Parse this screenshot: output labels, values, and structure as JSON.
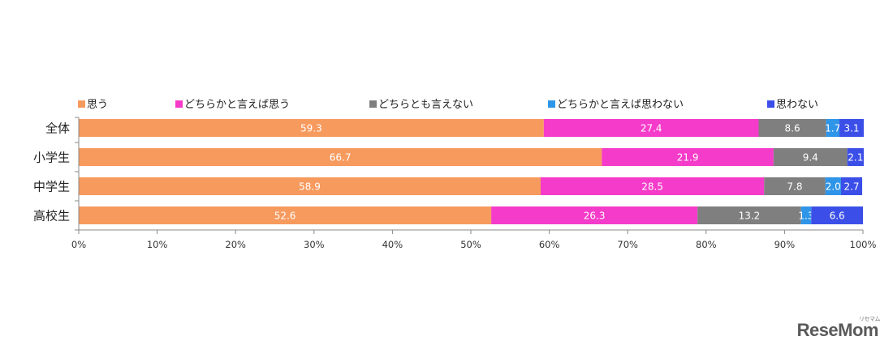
{
  "chart_data": {
    "type": "bar",
    "orientation": "horizontal",
    "stacked": true,
    "categories": [
      "全体",
      "小学生",
      "中学生",
      "高校生"
    ],
    "series": [
      {
        "name": "思う",
        "color": "#F79A5E",
        "values": [
          59.3,
          66.7,
          58.9,
          52.6
        ],
        "labels": [
          "59.3",
          "66.7",
          "58.9",
          "52.6"
        ]
      },
      {
        "name": "どちらかと言えば思う",
        "color": "#F53BC9",
        "values": [
          27.4,
          21.9,
          28.5,
          26.3
        ],
        "labels": [
          "27.4",
          "21.9",
          "28.5",
          "26.3"
        ]
      },
      {
        "name": "どちらとも言えない",
        "color": "#7F7F7F",
        "values": [
          8.6,
          9.4,
          7.8,
          13.2
        ],
        "labels": [
          "8.6",
          "9.4",
          "7.8",
          "13.2"
        ]
      },
      {
        "name": "どちらかと言えば思わない",
        "color": "#2F95E8",
        "values": [
          1.7,
          0.0,
          2.0,
          1.3
        ],
        "labels": [
          "1.7",
          "",
          "2.0",
          "1.3"
        ]
      },
      {
        "name": "思わない",
        "color": "#3B4FE8",
        "values": [
          3.1,
          2.1,
          2.7,
          6.6
        ],
        "labels": [
          "3.1",
          "2.1",
          "2.7",
          "6.6"
        ]
      }
    ],
    "xlim": [
      0,
      100
    ],
    "xticks": [
      "0%",
      "10%",
      "20%",
      "30%",
      "40%",
      "50%",
      "60%",
      "70%",
      "80%",
      "90%",
      "100%"
    ],
    "legend": "top",
    "grid": false,
    "title": "",
    "xlabel": "",
    "ylabel": ""
  },
  "watermark": {
    "text": "ReseMom",
    "sub": "リセマム"
  }
}
